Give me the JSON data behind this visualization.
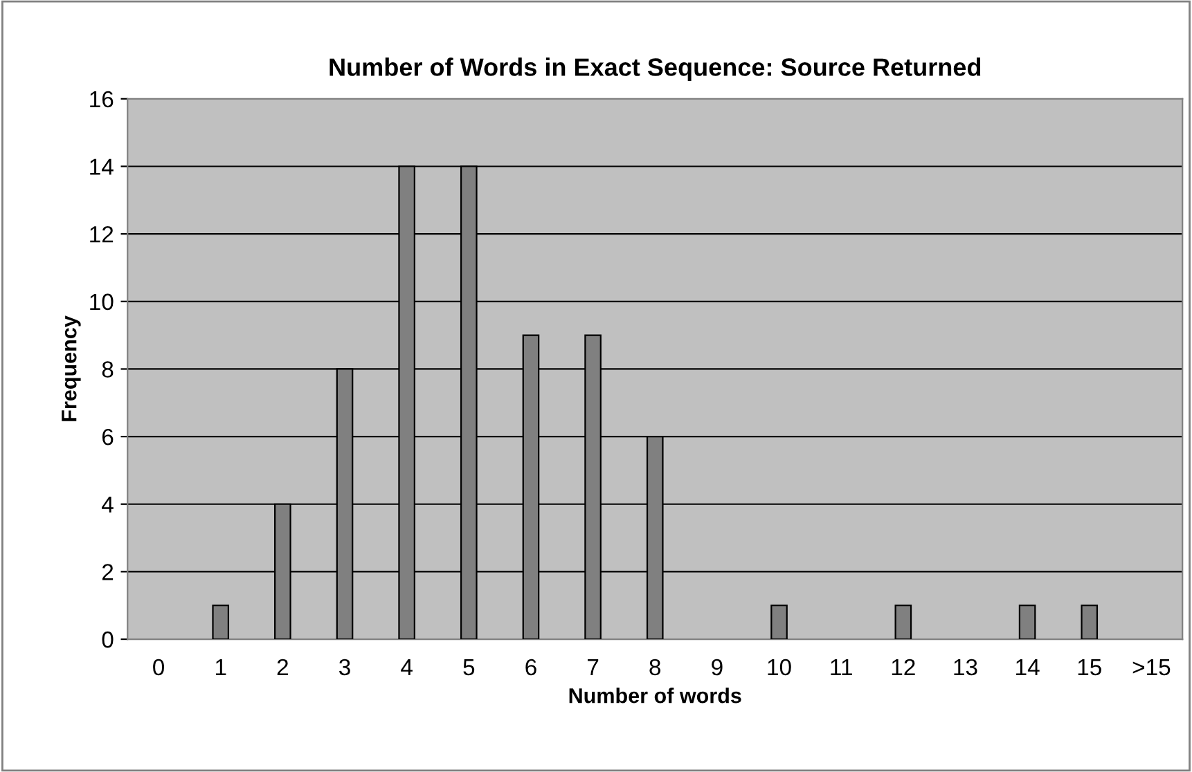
{
  "chart_data": {
    "type": "bar",
    "title": "Number of Words in Exact Sequence: Source Returned",
    "xlabel": "Number of words",
    "ylabel": "Frequency",
    "categories": [
      "0",
      "1",
      "2",
      "3",
      "4",
      "5",
      "6",
      "7",
      "8",
      "9",
      "10",
      "11",
      "12",
      "13",
      "14",
      "15",
      ">15"
    ],
    "values": [
      0,
      1,
      4,
      8,
      14,
      14,
      9,
      9,
      6,
      0,
      1,
      0,
      1,
      0,
      1,
      1,
      0
    ],
    "color": "#808080",
    "ylim": [
      0,
      16
    ],
    "yticks": [
      0,
      2,
      4,
      6,
      8,
      10,
      12,
      14,
      16
    ],
    "grid": "y"
  }
}
